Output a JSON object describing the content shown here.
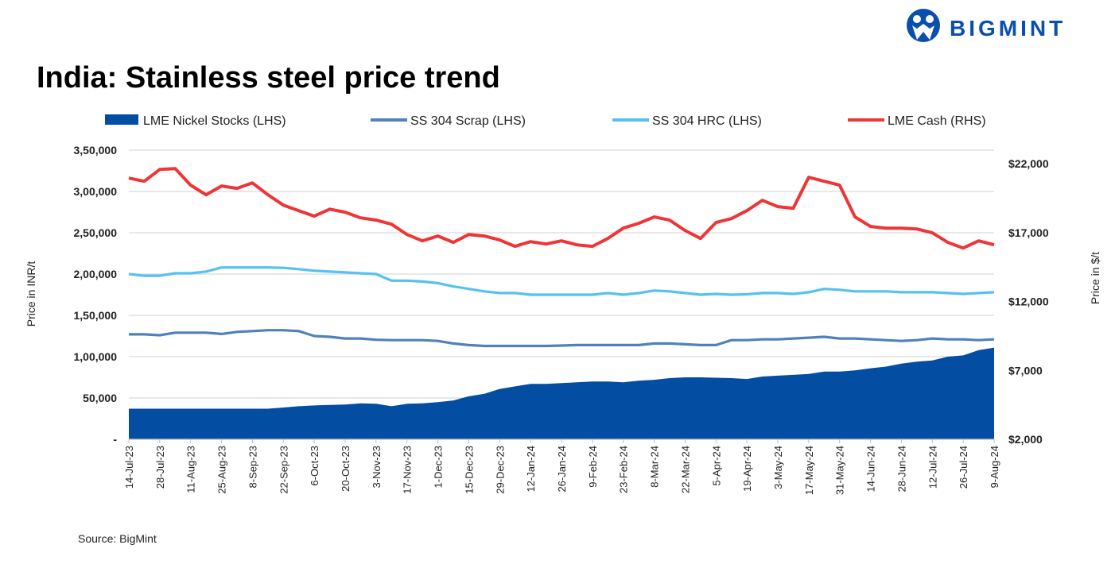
{
  "brand": {
    "name": "BIGMINT",
    "color": "#0a4fae"
  },
  "source": "Source: BigMint",
  "chart_data": {
    "type": "line",
    "title": "India: Stainless steel price trend",
    "legend_position": "top",
    "grid": true,
    "ylabel_left": "Price in INR/t",
    "ylabel_right": "Price in $/t",
    "ylim_left": [
      0,
      350000
    ],
    "ylim_right": [
      2000,
      22000
    ],
    "left_tick_labels": [
      "-",
      "50,000",
      "1,00,000",
      "1,50,000",
      "2,00,000",
      "2,50,000",
      "3,00,000",
      "3,50,000"
    ],
    "left_ticks": [
      0,
      50000,
      100000,
      150000,
      200000,
      250000,
      300000,
      350000
    ],
    "right_tick_labels": [
      "$2,000",
      "$7,000",
      "$12,000",
      "$17,000",
      "$22,000"
    ],
    "right_ticks": [
      2000,
      7000,
      12000,
      17000,
      22000
    ],
    "x": [
      "14-Jul-23",
      "21-Jul-23",
      "28-Jul-23",
      "4-Aug-23",
      "11-Aug-23",
      "18-Aug-23",
      "25-Aug-23",
      "1-Sep-23",
      "8-Sep-23",
      "15-Sep-23",
      "22-Sep-23",
      "29-Sep-23",
      "6-Oct-23",
      "13-Oct-23",
      "20-Oct-23",
      "27-Oct-23",
      "3-Nov-23",
      "10-Nov-23",
      "17-Nov-23",
      "24-Nov-23",
      "1-Dec-23",
      "8-Dec-23",
      "15-Dec-23",
      "22-Dec-23",
      "29-Dec-23",
      "5-Jan-24",
      "12-Jan-24",
      "19-Jan-24",
      "26-Jan-24",
      "2-Feb-24",
      "9-Feb-24",
      "16-Feb-24",
      "23-Feb-24",
      "1-Mar-24",
      "8-Mar-24",
      "15-Mar-24",
      "22-Mar-24",
      "29-Mar-24",
      "5-Apr-24",
      "12-Apr-24",
      "19-Apr-24",
      "26-Apr-24",
      "3-May-24",
      "10-May-24",
      "17-May-24",
      "24-May-24",
      "31-May-24",
      "7-Jun-24",
      "14-Jun-24",
      "21-Jun-24",
      "28-Jun-24",
      "5-Jul-24",
      "12-Jul-24",
      "19-Jul-24",
      "26-Jul-24",
      "2-Aug-24",
      "9-Aug-24"
    ],
    "x_tick_every": 2,
    "series": [
      {
        "name": "LME Nickel Stocks (LHS)",
        "kind": "area",
        "axis": "left",
        "color": "#034ea2",
        "values": [
          37000,
          37000,
          37000,
          37000,
          37000,
          37000,
          37000,
          37000,
          37000,
          37000,
          38500,
          40000,
          41000,
          41500,
          42000,
          43500,
          43000,
          40000,
          43000,
          43500,
          45000,
          47000,
          52000,
          55000,
          61000,
          64000,
          67000,
          67000,
          68000,
          69000,
          70000,
          70000,
          69000,
          71000,
          72000,
          74000,
          75000,
          75000,
          74500,
          74000,
          73000,
          76000,
          77000,
          78000,
          79000,
          82000,
          82000,
          83500,
          86000,
          88000,
          91500,
          94000,
          95500,
          100000,
          101500,
          108000,
          111000
        ]
      },
      {
        "name": "SS 304 Scrap (LHS)",
        "kind": "line",
        "axis": "left",
        "color": "#4f81bd",
        "values": [
          127000,
          127000,
          126000,
          129000,
          129000,
          129000,
          127500,
          130000,
          131000,
          132000,
          132000,
          131000,
          125000,
          124000,
          122000,
          122000,
          120500,
          120000,
          120000,
          120000,
          119000,
          116000,
          114000,
          113000,
          113000,
          113000,
          113000,
          113000,
          113500,
          114000,
          114000,
          114000,
          114000,
          114000,
          116000,
          116000,
          115000,
          114000,
          114000,
          120000,
          120000,
          121000,
          121000,
          122000,
          123000,
          124000,
          122000,
          122000,
          121000,
          120000,
          119000,
          120000,
          122000,
          121000,
          121000,
          120000,
          121000
        ]
      },
      {
        "name": "SS 304 HRC (LHS)",
        "kind": "line",
        "axis": "left",
        "color": "#56c1f0",
        "values": [
          200000,
          198000,
          198000,
          201000,
          201000,
          203000,
          208000,
          208000,
          208000,
          208000,
          207500,
          206000,
          204000,
          203000,
          202000,
          201000,
          200000,
          192000,
          192000,
          191000,
          189000,
          185000,
          182000,
          179000,
          177000,
          177000,
          175000,
          175000,
          175000,
          175000,
          175000,
          177000,
          175000,
          177000,
          180000,
          179000,
          177000,
          175000,
          176000,
          175000,
          175500,
          177000,
          177000,
          176000,
          178000,
          182000,
          181000,
          179000,
          179000,
          179000,
          178000,
          178000,
          178000,
          177000,
          176000,
          177000,
          178000
        ]
      },
      {
        "name": "LME Cash (RHS)",
        "kind": "line",
        "axis": "right",
        "color": "#ee3537",
        "values": [
          20950,
          20720,
          21580,
          21640,
          20440,
          19740,
          20380,
          20210,
          20600,
          19740,
          18990,
          18590,
          18190,
          18700,
          18480,
          18070,
          17900,
          17610,
          16860,
          16400,
          16750,
          16290,
          16860,
          16750,
          16460,
          16000,
          16340,
          16170,
          16400,
          16110,
          16000,
          16570,
          17320,
          17670,
          18130,
          17900,
          17150,
          16570,
          17730,
          18010,
          18590,
          19340,
          18880,
          18760,
          21010,
          20720,
          20440,
          18130,
          17440,
          17320,
          17320,
          17260,
          16980,
          16290,
          15880,
          16400,
          16110
        ]
      }
    ]
  }
}
